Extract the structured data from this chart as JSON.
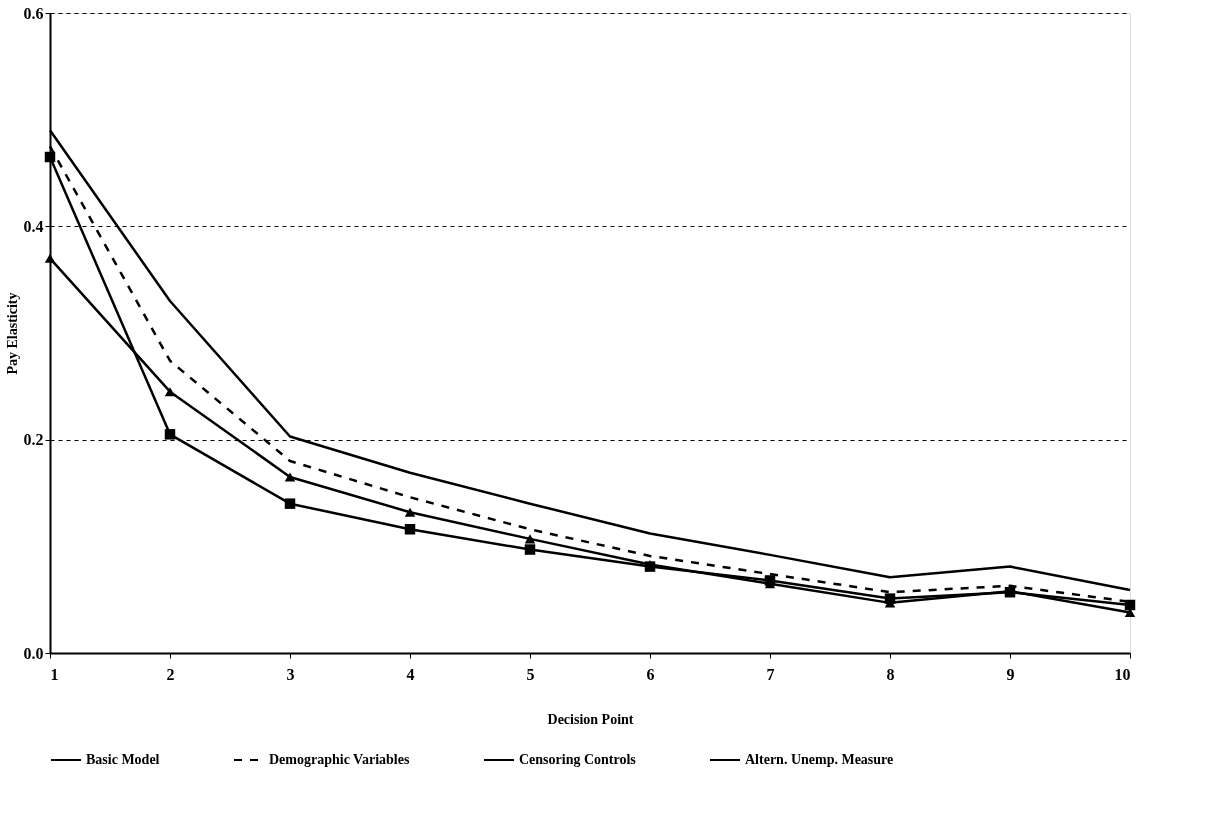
{
  "chart_data": {
    "type": "line",
    "xlabel": "Decision Point",
    "ylabel": "Pay Elasticity",
    "x": [
      1,
      2,
      3,
      4,
      5,
      6,
      7,
      8,
      9,
      10
    ],
    "series": [
      {
        "name": "Basic Model",
        "color": "#000000",
        "line_style": "solid",
        "marker": "none",
        "values": [
          0.49,
          0.33,
          0.203,
          0.169,
          0.14,
          0.112,
          0.092,
          0.071,
          0.081,
          0.059
        ]
      },
      {
        "name": "Demographic Variables",
        "color": "#000000",
        "line_style": "dashed",
        "marker": "none",
        "values": [
          0.475,
          0.274,
          0.18,
          0.146,
          0.116,
          0.091,
          0.074,
          0.057,
          0.063,
          0.048
        ]
      },
      {
        "name": "Censoring Controls",
        "color": "#000000",
        "line_style": "solid",
        "marker": "square",
        "values": [
          0.465,
          0.205,
          0.14,
          0.116,
          0.097,
          0.081,
          0.068,
          0.051,
          0.057,
          0.045
        ]
      },
      {
        "name": "Altern. Unemp. Measure",
        "color": "#000000",
        "line_style": "solid",
        "marker": "triangle",
        "values": [
          0.37,
          0.245,
          0.165,
          0.132,
          0.107,
          0.083,
          0.065,
          0.047,
          0.058,
          0.038
        ]
      }
    ],
    "xlim": [
      1,
      10
    ],
    "xticks": [
      1,
      2,
      3,
      4,
      5,
      6,
      7,
      8,
      9,
      10
    ],
    "ylim": [
      0,
      0.6
    ],
    "yticks": [
      {
        "value": 0,
        "label": "0.0"
      },
      {
        "value": 0.2,
        "label": "0.2"
      },
      {
        "value": 0.4,
        "label": "0.4"
      },
      {
        "value": 0.6,
        "label": "0.6"
      }
    ],
    "grid": "y",
    "legend": "bottom"
  }
}
